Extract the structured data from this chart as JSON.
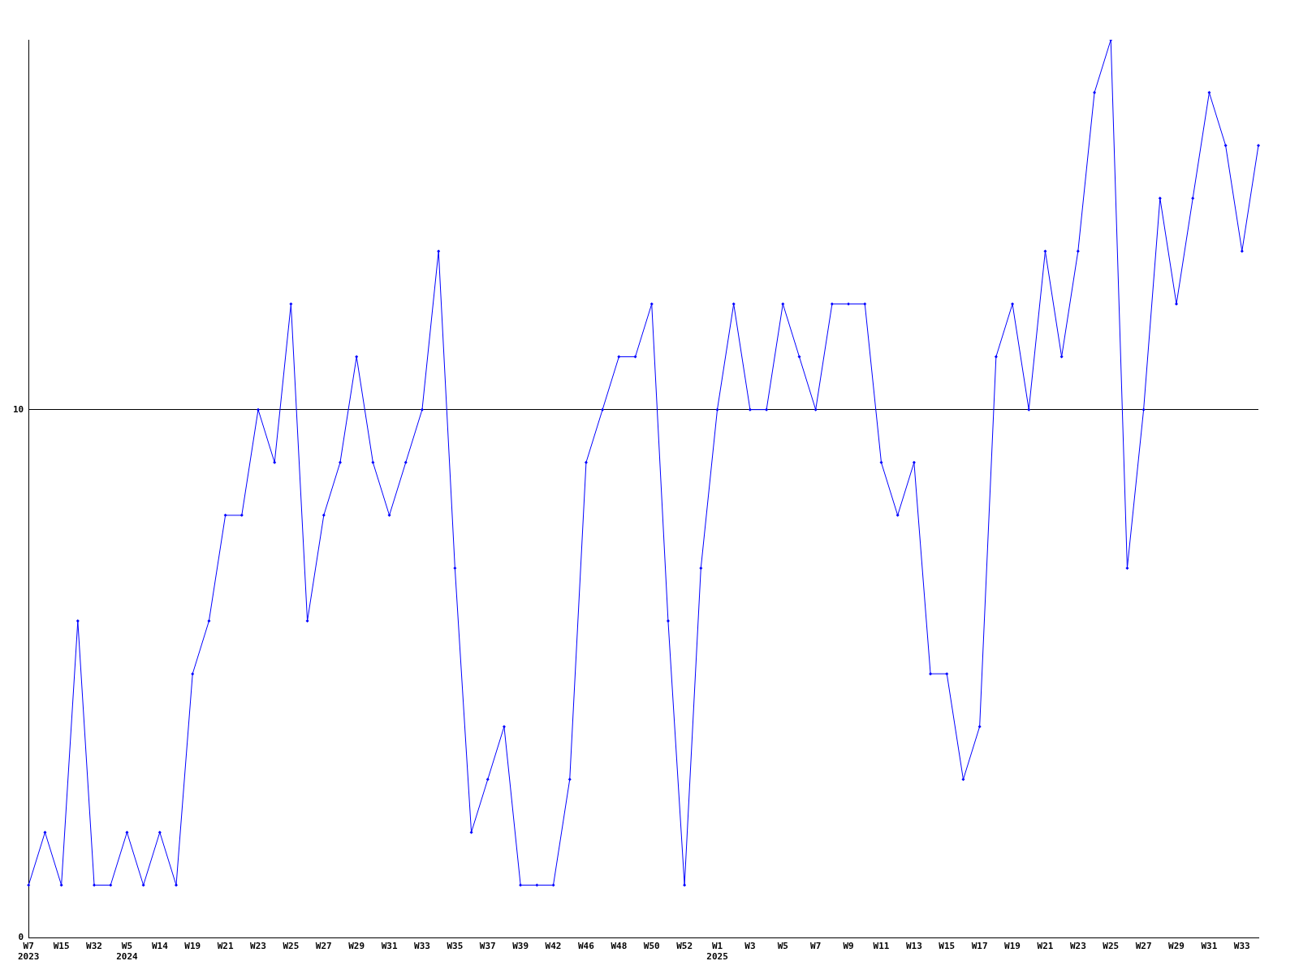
{
  "chart_data": {
    "type": "line",
    "categories": [
      "W7\n2023",
      null,
      "W15",
      null,
      "W32",
      null,
      "W5\n2024",
      null,
      "W14",
      null,
      "W19",
      null,
      "W21",
      null,
      "W23",
      null,
      "W25",
      null,
      "W27",
      null,
      "W29",
      null,
      "W31",
      null,
      "W33",
      null,
      "W35",
      null,
      "W37",
      null,
      "W39",
      null,
      "W42",
      null,
      "W46",
      null,
      "W48",
      null,
      "W50",
      null,
      "W52",
      null,
      "W1\n2025",
      null,
      "W3",
      null,
      "W5",
      null,
      "W7",
      null,
      "W9",
      null,
      "W11",
      null,
      "W13",
      null,
      "W15",
      null,
      "W17",
      null,
      "W19",
      null,
      "W21",
      null,
      "W23",
      null,
      "W25",
      null,
      "W27",
      null,
      "W29",
      null,
      "W31",
      null,
      "W33",
      null
    ],
    "series": [
      {
        "color": "#0000ff",
        "values": [
          1,
          2,
          1,
          6,
          1,
          1,
          2,
          1,
          2,
          1,
          5,
          6,
          8,
          8,
          10,
          9,
          12,
          6,
          8,
          9,
          11,
          9,
          8,
          9,
          10,
          13,
          7,
          2,
          3,
          4,
          1,
          1,
          1,
          3,
          9,
          10,
          11,
          11,
          12,
          6,
          1,
          7,
          10,
          12,
          10,
          10,
          12,
          11,
          10,
          12,
          12,
          12,
          9,
          8,
          9,
          5,
          5,
          3,
          4,
          11,
          12,
          10,
          13,
          11,
          13,
          16,
          17,
          7,
          10,
          14,
          12,
          14,
          16,
          15,
          13,
          15
        ]
      }
    ],
    "ylim": [
      0,
      17
    ],
    "yticks": [
      0,
      10
    ],
    "grid": "y",
    "legend": false,
    "marker": "diamond",
    "line_style": "solid"
  }
}
